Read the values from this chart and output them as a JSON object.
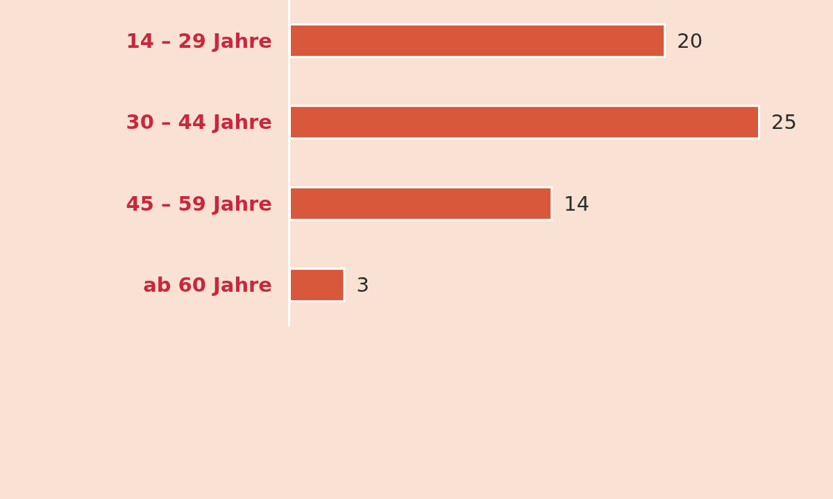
{
  "chart_data": {
    "type": "bar",
    "orientation": "horizontal",
    "categories": [
      "14 – 29 Jahre",
      "30 – 44 Jahre",
      "45 – 59 Jahre",
      "ab 60 Jahre"
    ],
    "values": [
      20,
      25,
      14,
      3
    ],
    "color": "#d9573a",
    "data_labels": true
  }
}
